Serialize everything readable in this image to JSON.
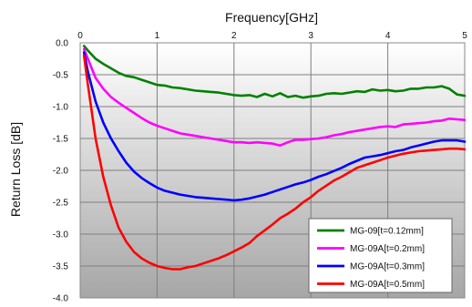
{
  "chart_data": {
    "type": "line",
    "xlabel": "Frequency[GHz]",
    "ylabel": "Return Loss [dB]",
    "xlim": [
      0,
      5
    ],
    "ylim": [
      -4.0,
      0.0
    ],
    "x_ticks": [
      "0",
      "1",
      "2",
      "3",
      "4",
      "5"
    ],
    "y_ticks": [
      "0.0",
      "-0.5",
      "-1.0",
      "-1.5",
      "-2.0",
      "-2.5",
      "-3.0",
      "-3.5",
      "-4.0"
    ],
    "x_axis_position": "top",
    "grid": true,
    "background": "vertical-gradient-white-to-gray",
    "legend_position": "bottom-right",
    "x": [
      0.05,
      0.1,
      0.2,
      0.3,
      0.4,
      0.5,
      0.6,
      0.7,
      0.8,
      0.9,
      1.0,
      1.1,
      1.2,
      1.3,
      1.4,
      1.5,
      1.6,
      1.7,
      1.8,
      1.9,
      2.0,
      2.1,
      2.2,
      2.3,
      2.4,
      2.5,
      2.6,
      2.7,
      2.8,
      2.9,
      3.0,
      3.1,
      3.2,
      3.3,
      3.4,
      3.5,
      3.6,
      3.7,
      3.8,
      3.9,
      4.0,
      4.1,
      4.2,
      4.3,
      4.4,
      4.5,
      4.6,
      4.7,
      4.8,
      4.9,
      5.0
    ],
    "series": [
      {
        "name": "MG-09[t=0.12mm]",
        "color": "#008000",
        "values": [
          -0.05,
          -0.12,
          -0.25,
          -0.33,
          -0.4,
          -0.47,
          -0.52,
          -0.54,
          -0.58,
          -0.62,
          -0.66,
          -0.67,
          -0.7,
          -0.71,
          -0.73,
          -0.75,
          -0.76,
          -0.77,
          -0.78,
          -0.8,
          -0.82,
          -0.83,
          -0.82,
          -0.85,
          -0.8,
          -0.84,
          -0.79,
          -0.85,
          -0.83,
          -0.86,
          -0.84,
          -0.83,
          -0.8,
          -0.79,
          -0.8,
          -0.78,
          -0.76,
          -0.77,
          -0.73,
          -0.75,
          -0.74,
          -0.76,
          -0.75,
          -0.72,
          -0.72,
          -0.7,
          -0.7,
          -0.68,
          -0.72,
          -0.81,
          -0.83
        ]
      },
      {
        "name": "MG-09A[t=0.2mm]",
        "color": "#ff00ff",
        "values": [
          -0.1,
          -0.25,
          -0.55,
          -0.72,
          -0.85,
          -0.94,
          -1.02,
          -1.1,
          -1.18,
          -1.25,
          -1.3,
          -1.34,
          -1.38,
          -1.42,
          -1.44,
          -1.46,
          -1.48,
          -1.5,
          -1.52,
          -1.54,
          -1.56,
          -1.56,
          -1.57,
          -1.56,
          -1.57,
          -1.58,
          -1.61,
          -1.56,
          -1.52,
          -1.52,
          -1.51,
          -1.5,
          -1.48,
          -1.45,
          -1.43,
          -1.4,
          -1.38,
          -1.36,
          -1.34,
          -1.32,
          -1.31,
          -1.32,
          -1.28,
          -1.27,
          -1.26,
          -1.25,
          -1.23,
          -1.22,
          -1.19,
          -1.2,
          -1.21
        ]
      },
      {
        "name": "MG-09A[t=0.3mm]",
        "color": "#0000ff",
        "values": [
          -0.15,
          -0.45,
          -0.92,
          -1.25,
          -1.5,
          -1.7,
          -1.88,
          -2.02,
          -2.12,
          -2.2,
          -2.27,
          -2.32,
          -2.35,
          -2.38,
          -2.4,
          -2.42,
          -2.43,
          -2.44,
          -2.45,
          -2.46,
          -2.47,
          -2.46,
          -2.44,
          -2.41,
          -2.38,
          -2.34,
          -2.3,
          -2.26,
          -2.22,
          -2.19,
          -2.15,
          -2.1,
          -2.06,
          -2.01,
          -1.96,
          -1.9,
          -1.85,
          -1.8,
          -1.78,
          -1.76,
          -1.73,
          -1.7,
          -1.68,
          -1.64,
          -1.61,
          -1.58,
          -1.55,
          -1.53,
          -1.53,
          -1.53,
          -1.55
        ]
      },
      {
        "name": "MG-09A[t=0.5mm]",
        "color": "#ff0000",
        "values": [
          -0.2,
          -0.65,
          -1.5,
          -2.1,
          -2.55,
          -2.9,
          -3.12,
          -3.28,
          -3.38,
          -3.45,
          -3.5,
          -3.53,
          -3.55,
          -3.55,
          -3.52,
          -3.5,
          -3.46,
          -3.42,
          -3.38,
          -3.33,
          -3.27,
          -3.21,
          -3.14,
          -3.03,
          -2.94,
          -2.85,
          -2.75,
          -2.68,
          -2.6,
          -2.5,
          -2.42,
          -2.32,
          -2.24,
          -2.16,
          -2.1,
          -2.03,
          -1.96,
          -1.92,
          -1.88,
          -1.84,
          -1.8,
          -1.77,
          -1.74,
          -1.72,
          -1.7,
          -1.69,
          -1.68,
          -1.67,
          -1.66,
          -1.66,
          -1.67
        ]
      }
    ]
  }
}
